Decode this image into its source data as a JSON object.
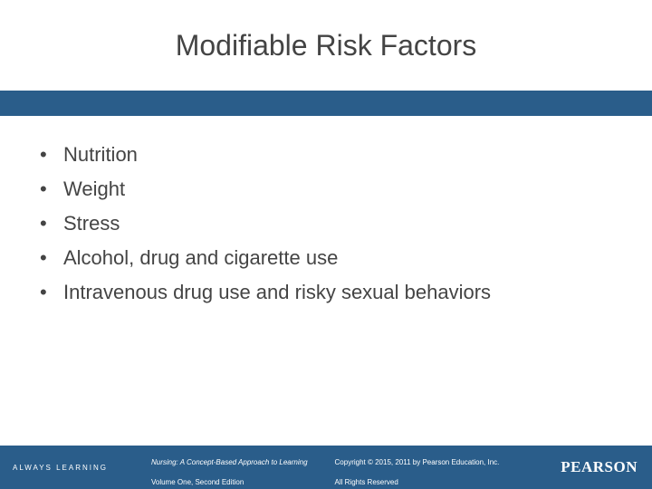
{
  "colors": {
    "brand_blue": "#2a5d8a",
    "text": "#444444",
    "footer_text": "#ffffff",
    "background": "#ffffff"
  },
  "typography": {
    "title_fontsize": 32,
    "body_fontsize": 22,
    "footer_fontsize": 8,
    "logo_fontsize": 17
  },
  "title": "Modifiable Risk Factors",
  "bullets": [
    "Nutrition",
    "Weight",
    "Stress",
    "Alcohol, drug and cigarette use",
    "Intravenous drug use and risky sexual behaviors"
  ],
  "footer": {
    "always_learning": "ALWAYS LEARNING",
    "book_line1": "Nursing: A Concept-Based Approach to Learning",
    "book_line2": "Volume One, Second Edition",
    "copyright_line1": "Copyright © 2015, 2011 by Pearson Education, Inc.",
    "copyright_line2": "All Rights Reserved",
    "logo": "PEARSON"
  }
}
